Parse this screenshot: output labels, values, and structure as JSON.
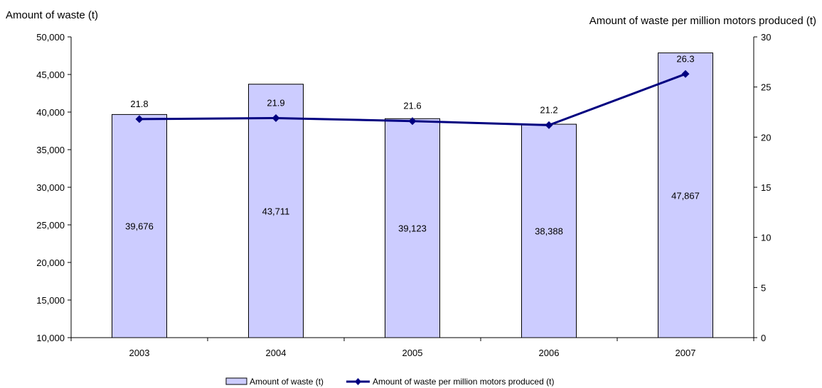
{
  "chart_data": {
    "type": "bar",
    "categories": [
      "2003",
      "2004",
      "2005",
      "2006",
      "2007"
    ],
    "series": [
      {
        "name": "Amount of waste (t)",
        "type": "bar",
        "axis": "left",
        "values": [
          39676,
          43711,
          39123,
          38388,
          47867
        ],
        "labels": [
          "39,676",
          "43,711",
          "39,123",
          "38,388",
          "47,867"
        ],
        "color": "#ccccff",
        "border_color": "#000000"
      },
      {
        "name": "Amount of waste per million motors produced (t)",
        "type": "line",
        "axis": "right",
        "values": [
          21.8,
          21.9,
          21.6,
          21.2,
          26.3
        ],
        "labels": [
          "21.8",
          "21.9",
          "21.6",
          "21.2",
          "26.3"
        ],
        "color": "#000080",
        "marker": "diamond"
      }
    ],
    "y_left": {
      "label": "Amount of waste (t)",
      "ylim": [
        10000,
        50000
      ],
      "ticks": [
        10000,
        15000,
        20000,
        25000,
        30000,
        35000,
        40000,
        45000,
        50000
      ],
      "tick_labels": [
        "10,000",
        "15,000",
        "20,000",
        "25,000",
        "30,000",
        "35,000",
        "40,000",
        "45,000",
        "50,000"
      ]
    },
    "y_right": {
      "label": "Amount of waste per million motors produced (t)",
      "ylim": [
        0,
        30
      ],
      "ticks": [
        0,
        5,
        10,
        15,
        20,
        25,
        30
      ],
      "tick_labels": [
        "0",
        "5",
        "10",
        "15",
        "20",
        "25",
        "30"
      ]
    },
    "grid": false,
    "legend_position": "bottom-center"
  }
}
